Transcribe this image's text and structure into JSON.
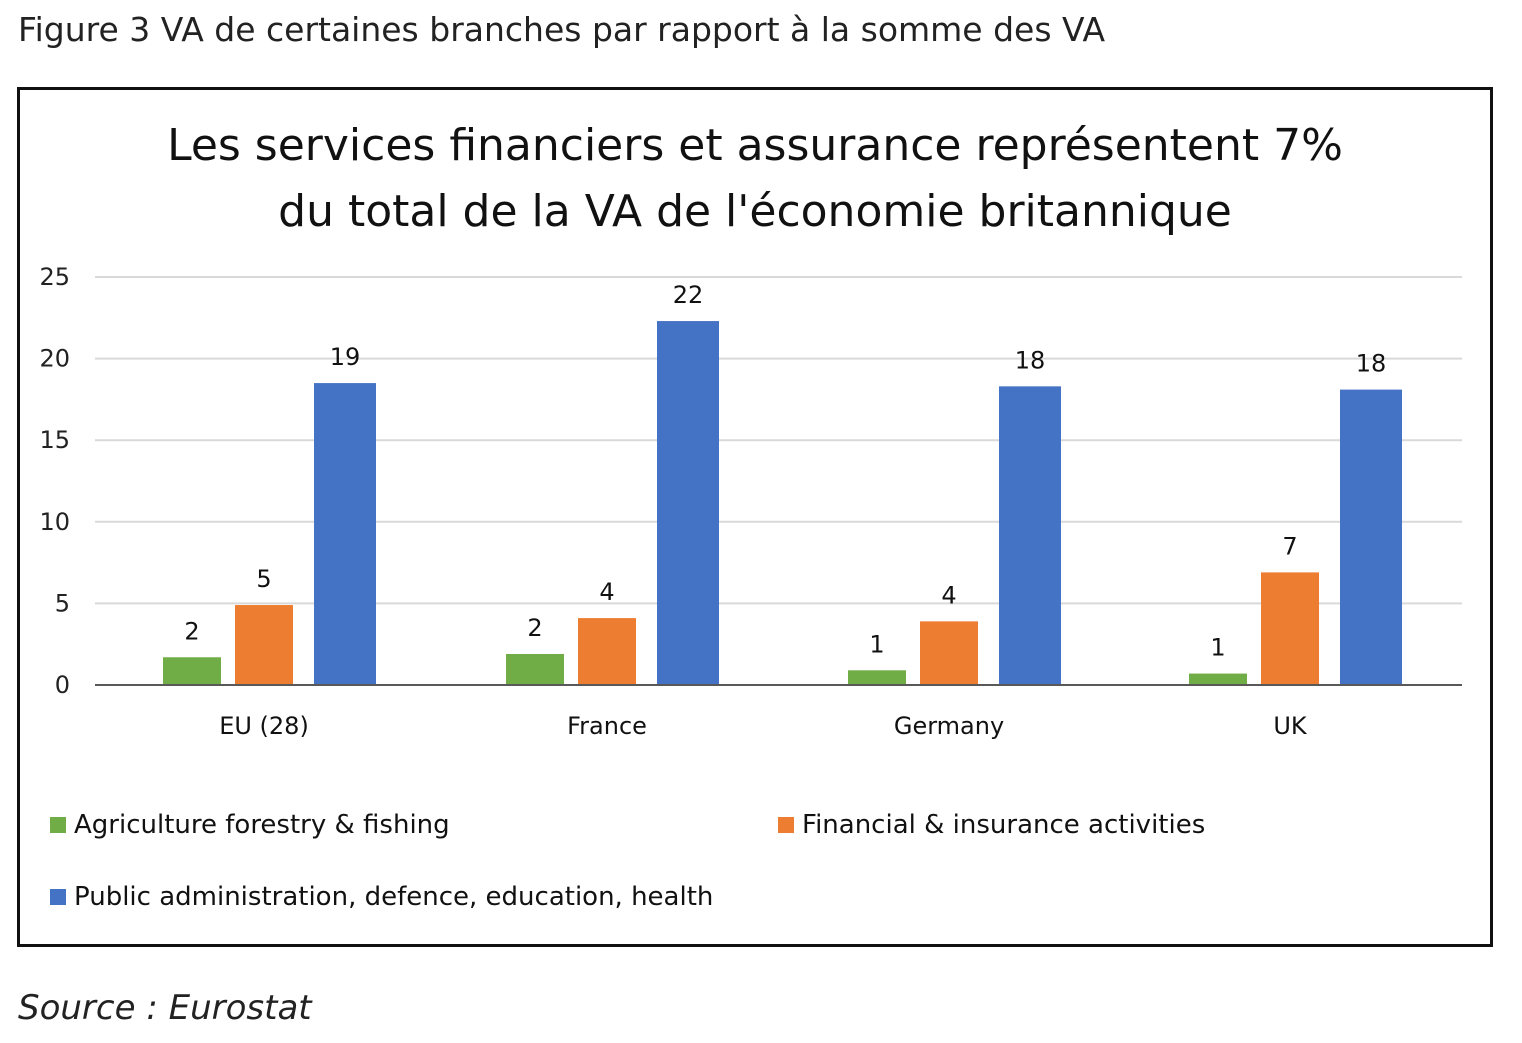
{
  "figure_title": "Figure 3 VA de certaines branches par rapport à la somme des VA",
  "source": "Source : Eurostat",
  "colors": {
    "agriculture": "#70ad47",
    "financial": "#ed7d31",
    "public": "#4472c4",
    "grid": "#d9d9d9",
    "axis": "#595959"
  },
  "chart_data": {
    "type": "bar",
    "title": [
      "Les services financiers et assurance représentent 7%",
      "du total de la VA de l'économie britannique"
    ],
    "categories": [
      "EU (28)",
      "France",
      "Germany",
      "UK"
    ],
    "series": [
      {
        "name": "Agriculture forestry & fishing",
        "color": "#70ad47",
        "values": [
          1.7,
          1.9,
          0.9,
          0.7
        ],
        "labels": [
          "2",
          "2",
          "1",
          "1"
        ]
      },
      {
        "name": "Financial & insurance activities",
        "color": "#ed7d31",
        "values": [
          4.9,
          4.1,
          3.9,
          6.9
        ],
        "labels": [
          "5",
          "4",
          "4",
          "7"
        ]
      },
      {
        "name": "Public administration, defence, education, health",
        "color": "#4472c4",
        "values": [
          18.5,
          22.3,
          18.3,
          18.1
        ],
        "labels": [
          "19",
          "22",
          "18",
          "18"
        ]
      }
    ],
    "ylim": [
      0,
      25
    ],
    "yticks": [
      "0",
      "5",
      "10",
      "15",
      "20",
      "25"
    ],
    "grid": true,
    "legend_position": "bottom"
  }
}
